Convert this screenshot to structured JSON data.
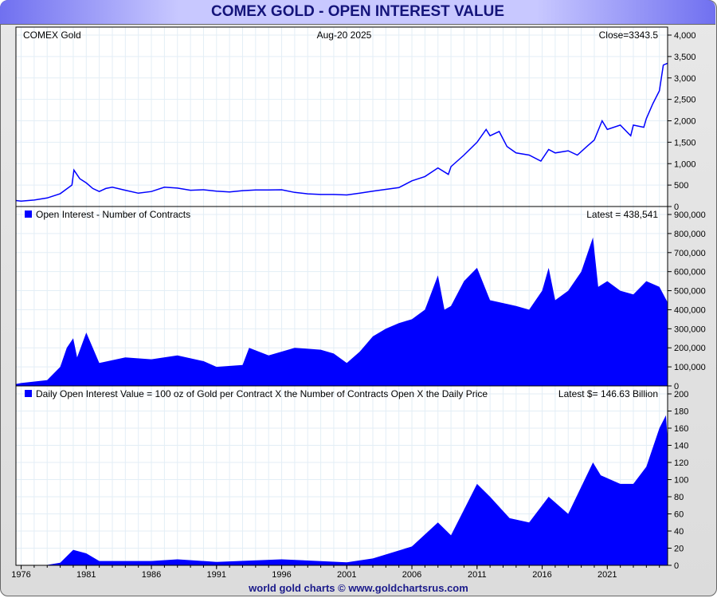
{
  "header": {
    "title": "COMEX GOLD - OPEN INTEREST VALUE"
  },
  "footer": "world gold charts © www.goldchartsrus.com",
  "chart_data": [
    {
      "type": "line",
      "label_left": "COMEX Gold",
      "label_center": "Aug-20  2025",
      "label_right": "Close=3343.5",
      "ylim": [
        0,
        4000
      ],
      "yticks": [
        "0",
        "500",
        "1,000",
        "1,500",
        "2,000",
        "2,500",
        "3,000",
        "3,500",
        "4,000"
      ],
      "ytick_values": [
        0,
        500,
        1000,
        1500,
        2000,
        2500,
        3000,
        3500,
        4000
      ],
      "color": "#0000ff",
      "x": [
        1975.6,
        1976,
        1977,
        1978,
        1979,
        1979.9,
        1980.05,
        1980.5,
        1981,
        1981.5,
        1982,
        1982.5,
        1983,
        1984,
        1985,
        1986,
        1987,
        1988,
        1989,
        1990,
        1991,
        1992,
        1993,
        1994,
        1995,
        1996,
        1997,
        1998,
        1999,
        2000,
        2001,
        2002,
        2003,
        2004,
        2005,
        2006,
        2007,
        2008,
        2008.8,
        2009,
        2010,
        2011,
        2011.7,
        2012,
        2012.7,
        2013.3,
        2014,
        2015,
        2015.9,
        2016.5,
        2017,
        2018,
        2018.7,
        2019.5,
        2020,
        2020.6,
        2021,
        2022,
        2022.8,
        2023,
        2023.8,
        2024,
        2024.5,
        2025,
        2025.3,
        2025.63
      ],
      "y": [
        140,
        125,
        150,
        200,
        300,
        500,
        850,
        650,
        550,
        420,
        350,
        420,
        450,
        380,
        310,
        350,
        450,
        430,
        380,
        390,
        360,
        340,
        370,
        385,
        385,
        390,
        330,
        295,
        280,
        280,
        270,
        310,
        360,
        400,
        440,
        600,
        700,
        900,
        750,
        930,
        1200,
        1500,
        1800,
        1650,
        1750,
        1400,
        1250,
        1200,
        1060,
        1330,
        1250,
        1300,
        1200,
        1420,
        1550,
        2000,
        1800,
        1900,
        1650,
        1900,
        1850,
        2050,
        2400,
        2700,
        3300,
        3343.5
      ]
    },
    {
      "type": "area",
      "legend": "Open Interest - Number of Contracts",
      "label_right": "Latest = 438,541",
      "ylim": [
        0,
        900000
      ],
      "yticks": [
        "0",
        "100,000",
        "200,000",
        "300,000",
        "400,000",
        "500,000",
        "600,000",
        "700,000",
        "800,000",
        "900,000"
      ],
      "ytick_values": [
        0,
        100000,
        200000,
        300000,
        400000,
        500000,
        600000,
        700000,
        800000,
        900000
      ],
      "color": "#0000ff",
      "x": [
        1975.6,
        1976,
        1978,
        1979,
        1979.5,
        1980,
        1980.3,
        1981,
        1981.5,
        1982,
        1984,
        1986,
        1988,
        1990,
        1991,
        1993,
        1993.5,
        1995,
        1997,
        1999,
        2000,
        2001,
        2002,
        2003,
        2004,
        2005,
        2006,
        2007,
        2008,
        2008.5,
        2009,
        2010,
        2011,
        2012,
        2014,
        2015,
        2016,
        2016.5,
        2017,
        2018,
        2019,
        2019.9,
        2020.3,
        2021,
        2022,
        2023,
        2024,
        2025,
        2025.63
      ],
      "y": [
        10000,
        15000,
        30000,
        100000,
        200000,
        250000,
        150000,
        280000,
        200000,
        120000,
        150000,
        140000,
        160000,
        130000,
        100000,
        110000,
        200000,
        160000,
        200000,
        190000,
        170000,
        120000,
        180000,
        260000,
        300000,
        330000,
        350000,
        400000,
        580000,
        400000,
        420000,
        550000,
        620000,
        450000,
        420000,
        400000,
        500000,
        620000,
        450000,
        500000,
        600000,
        780000,
        520000,
        550000,
        500000,
        480000,
        550000,
        520000,
        438541
      ]
    },
    {
      "type": "area",
      "legend": "Daily Open Interest Value = 100 oz of Gold per Contract X the Number of Contracts Open X the Daily Price",
      "label_right": "Latest $= 146.63 Billion",
      "ylim": [
        0,
        200
      ],
      "yticks": [
        "0",
        "20",
        "40",
        "60",
        "80",
        "100",
        "120",
        "140",
        "160",
        "180",
        "200"
      ],
      "ytick_values": [
        0,
        20,
        40,
        60,
        80,
        100,
        120,
        140,
        160,
        180,
        200
      ],
      "color": "#0000ff",
      "x": [
        1975.6,
        1978,
        1979,
        1980,
        1981,
        1982,
        1986,
        1988,
        1991,
        1996,
        2001,
        2003,
        2006,
        2008,
        2009,
        2011,
        2012,
        2013.5,
        2015,
        2016.5,
        2018,
        2019.9,
        2020.5,
        2022,
        2023,
        2024,
        2025,
        2025.5,
        2025.63
      ],
      "y": [
        0,
        0.5,
        3,
        18,
        14,
        5,
        5,
        7,
        4,
        7,
        3.5,
        8,
        22,
        50,
        35,
        95,
        80,
        55,
        50,
        80,
        60,
        120,
        105,
        95,
        95,
        115,
        160,
        175,
        146.63
      ]
    }
  ],
  "x_axis": {
    "ticks": [
      "1976",
      "1981",
      "1986",
      "1991",
      "1996",
      "2001",
      "2006",
      "2011",
      "2016",
      "2021"
    ],
    "tick_values": [
      1976,
      1981,
      1986,
      1991,
      1996,
      2001,
      2006,
      2011,
      2016,
      2021
    ],
    "xlim": [
      1975.6,
      2025.63
    ]
  }
}
